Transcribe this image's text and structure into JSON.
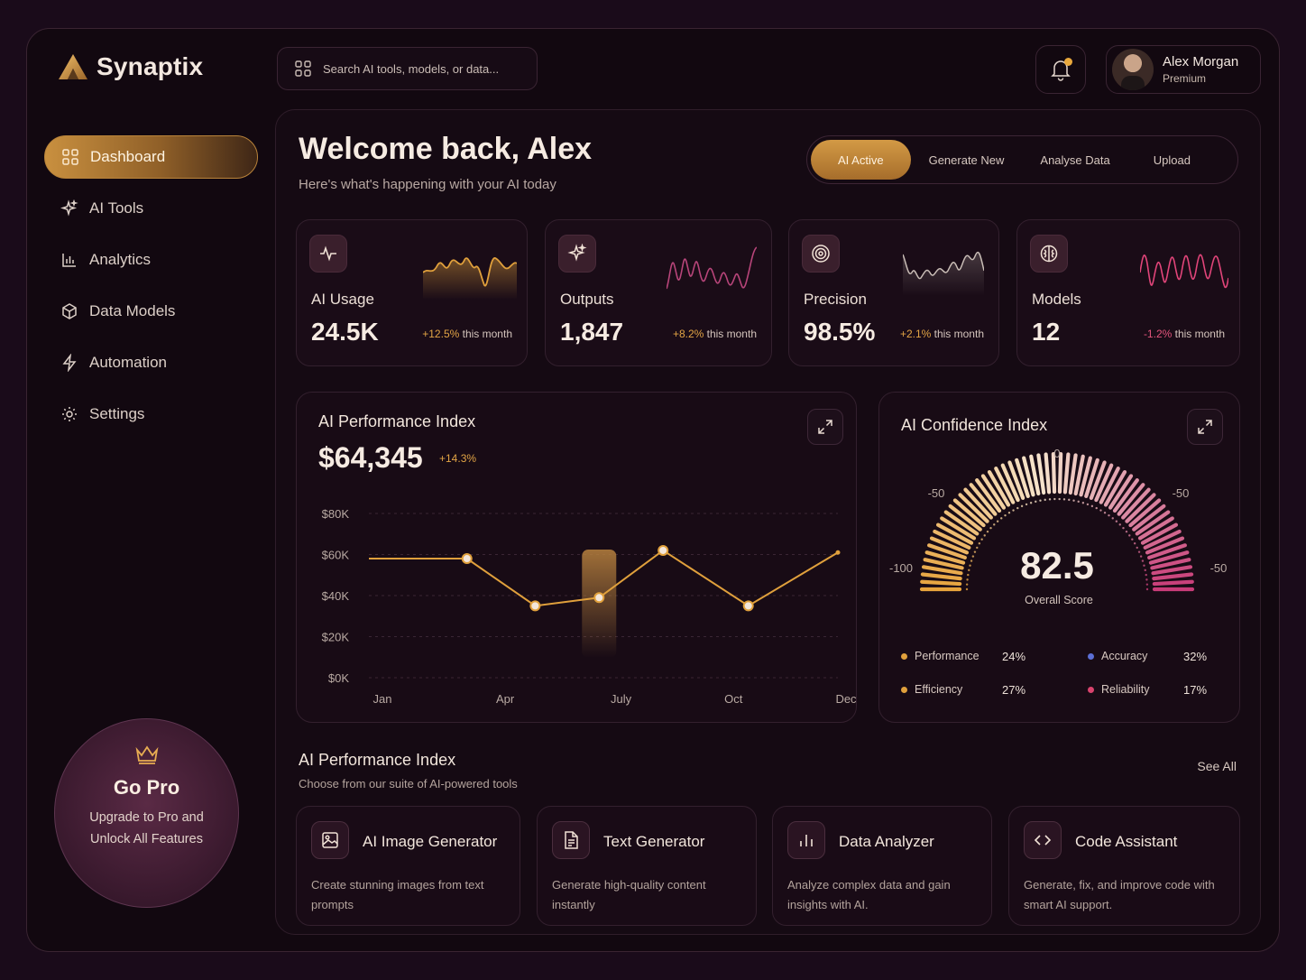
{
  "app": {
    "name": "Synaptix"
  },
  "search": {
    "placeholder": "Search AI tools, models, or data..."
  },
  "user": {
    "name": "Alex Morgan",
    "tier": "Premium"
  },
  "sidebar": {
    "items": [
      {
        "label": "Dashboard",
        "icon": "grid-icon",
        "active": true
      },
      {
        "label": "AI Tools",
        "icon": "sparkle-icon"
      },
      {
        "label": "Analytics",
        "icon": "bar-chart-icon"
      },
      {
        "label": "Data Models",
        "icon": "cube-icon"
      },
      {
        "label": "Automation",
        "icon": "lightning-icon"
      },
      {
        "label": "Settings",
        "icon": "gear-icon"
      }
    ],
    "promo": {
      "title": "Go Pro",
      "text": "Upgrade to Pro and Unlock All Features",
      "icon": "crown-icon"
    }
  },
  "header": {
    "title": "Welcome back, Alex",
    "subtitle": "Here's what's happening with your AI today",
    "tabs": [
      {
        "label": "AI Active",
        "active": true
      },
      {
        "label": "Generate New"
      },
      {
        "label": "Analyse Data"
      },
      {
        "label": "Upload"
      }
    ]
  },
  "stats": [
    {
      "label": "AI Usage",
      "value": "24.5K",
      "change": "+12.5%",
      "suffix": " this month",
      "trend": "pos",
      "icon": "pulse-icon",
      "color": "#e0a03c"
    },
    {
      "label": "Outputs",
      "value": "1,847",
      "change": "+8.2%",
      "suffix": " this month",
      "trend": "pos",
      "icon": "sparkle-icon",
      "color": "#b8457a"
    },
    {
      "label": "Precision",
      "value": "98.5%",
      "change": "+2.1%",
      "suffix": " this month",
      "trend": "pos",
      "icon": "target-icon",
      "color": "#c9bdb6"
    },
    {
      "label": "Models",
      "value": "12",
      "change": "-1.2%",
      "suffix": " this month",
      "trend": "neg",
      "icon": "brain-icon",
      "color": "#e2457a"
    }
  ],
  "performance": {
    "title": "AI Performance Index",
    "value": "$64,345",
    "change": "+14.3%"
  },
  "chart_data": {
    "type": "line",
    "title": "AI Performance Index",
    "x_ticks": [
      "Jan",
      "Apr",
      "July",
      "Oct",
      "Dec"
    ],
    "y_ticks": [
      "$0K",
      "$20K",
      "$40K",
      "$60K",
      "$80K"
    ],
    "ylim": [
      0,
      80
    ],
    "x": [
      0,
      2.3,
      3.9,
      5.4,
      6.9,
      8.9,
      11
    ],
    "values": [
      58,
      58,
      35,
      39,
      62,
      35,
      61
    ],
    "color": "#e0a03c",
    "highlight": "July",
    "grid": true
  },
  "confidence": {
    "title": "AI Confidence Index",
    "score": "82.5",
    "score_label": "Overall Score",
    "scale_labels": {
      "top": "0",
      "upper_left": "-50",
      "upper_right": "-50",
      "left": "-100",
      "right": "-50"
    },
    "legend": [
      {
        "label": "Performance",
        "value": "24%",
        "color": "#e0a03c"
      },
      {
        "label": "Accuracy",
        "value": "32%",
        "color": "#5c6fd6"
      },
      {
        "label": "Efficiency",
        "value": "27%",
        "color": "#e0a03c"
      },
      {
        "label": "Reliability",
        "value": "17%",
        "color": "#d9436d"
      }
    ]
  },
  "tools_section": {
    "title": "AI Performance Index",
    "subtitle": "Choose from our suite of AI-powered tools",
    "see_all": "See All",
    "tools": [
      {
        "name": "AI Image Generator",
        "desc": "Create stunning images from text prompts",
        "icon": "image-icon"
      },
      {
        "name": "Text Generator",
        "desc": "Generate high-quality content instantly",
        "icon": "document-icon"
      },
      {
        "name": "Data Analyzer",
        "desc": "Analyze complex data and gain insights with AI.",
        "icon": "bar-chart-icon"
      },
      {
        "name": "Code Assistant",
        "desc": "Generate, fix, and improve code with smart AI support.",
        "icon": "code-icon"
      }
    ]
  }
}
